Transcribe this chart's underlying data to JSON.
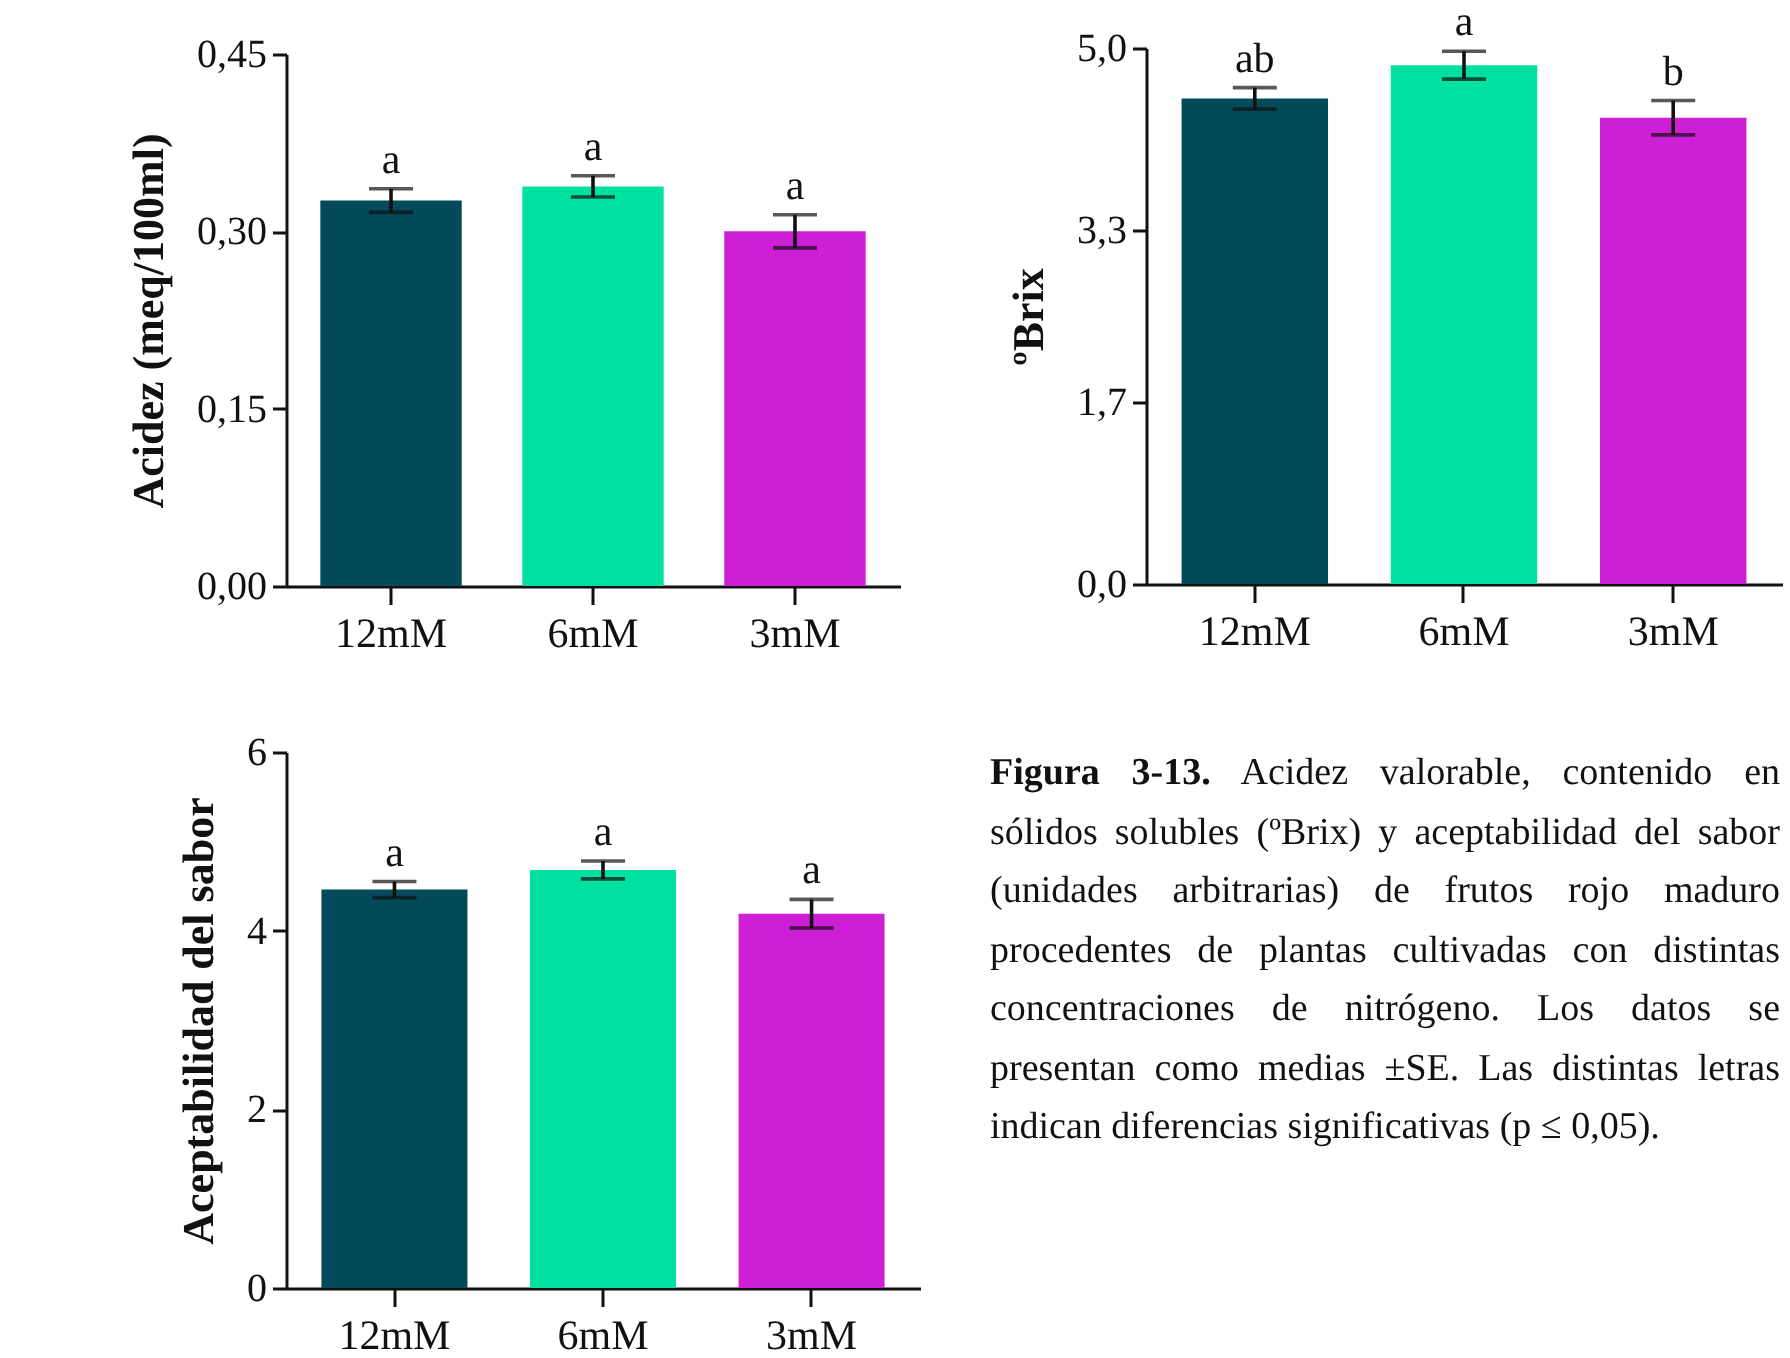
{
  "chart_data": [
    {
      "type": "bar",
      "ylabel": "Acidez (meq/100ml)",
      "categories": [
        "12mM",
        "6mM",
        "3mM"
      ],
      "values": [
        0.326,
        0.338,
        0.3
      ],
      "errors": [
        0.01,
        0.009,
        0.014
      ],
      "colors": [
        "#034a5a",
        "#00e0a0",
        "#cc1fd6"
      ],
      "ylim": [
        0,
        0.45
      ],
      "yticks": [
        {
          "value": 0,
          "label": "0,00"
        },
        {
          "value": 0.15,
          "label": "0,15"
        },
        {
          "value": 0.3,
          "label": "0,30"
        },
        {
          "value": 0.45,
          "label": "0,45"
        }
      ],
      "grid": false,
      "legend": false,
      "annotations": [
        {
          "text": "a",
          "x": "12mM",
          "y": 0.336
        },
        {
          "text": "a",
          "x": "6mM",
          "y": 0.347
        },
        {
          "text": "a",
          "x": "3mM",
          "y": 0.314
        }
      ]
    },
    {
      "type": "bar",
      "ylabel": "ºBrix",
      "categories": [
        "12mM",
        "6mM",
        "3mM"
      ],
      "values": [
        4.53,
        4.84,
        4.35
      ],
      "errors": [
        0.1,
        0.13,
        0.16
      ],
      "colors": [
        "#034a5a",
        "#00e0a0",
        "#cc1fd6"
      ],
      "ylim": [
        0,
        5
      ],
      "yticks": [
        {
          "value": 0,
          "label": "0,0"
        },
        {
          "value": 1.7,
          "label": "1,7"
        },
        {
          "value": 3.3,
          "label": "3,3"
        },
        {
          "value": 5,
          "label": "5,0"
        }
      ],
      "grid": false,
      "legend": false,
      "annotations": [
        {
          "text": "ab",
          "x": "12mM",
          "y": 4.63
        },
        {
          "text": "a",
          "x": "6mM",
          "y": 4.97
        },
        {
          "text": "b",
          "x": "3mM",
          "y": 4.51
        }
      ]
    },
    {
      "type": "bar",
      "ylabel": "Aceptabilidad del sabor",
      "categories": [
        "12mM",
        "6mM",
        "3mM"
      ],
      "values": [
        4.46,
        4.68,
        4.19
      ],
      "errors": [
        0.09,
        0.1,
        0.16
      ],
      "colors": [
        "#034a5a",
        "#00e0a0",
        "#cc1fd6"
      ],
      "ylim": [
        0,
        6
      ],
      "yticks": [
        0,
        2,
        4,
        6
      ],
      "grid": false,
      "legend": false,
      "annotations": [
        {
          "text": "a",
          "x": "12mM",
          "y": 4.55
        },
        {
          "text": "a",
          "x": "6mM",
          "y": 4.78
        },
        {
          "text": "a",
          "x": "3mM",
          "y": 4.35
        }
      ]
    },
    {
      "type": "other",
      "title": "Figura 3-13.",
      "annotations": [
        "Acidez valorable, contenido en sólidos solubles (ºBrix) y aceptabilidad del sabor (unidades arbitrarias) de frutos rojo maduro procedentes de plantas cultivadas con distintas concentraciones de nitrógeno. Los datos se presentan como medias ±SE. Las distintas letras indican diferencias significativas (p ≤ 0,05)."
      ]
    }
  ]
}
